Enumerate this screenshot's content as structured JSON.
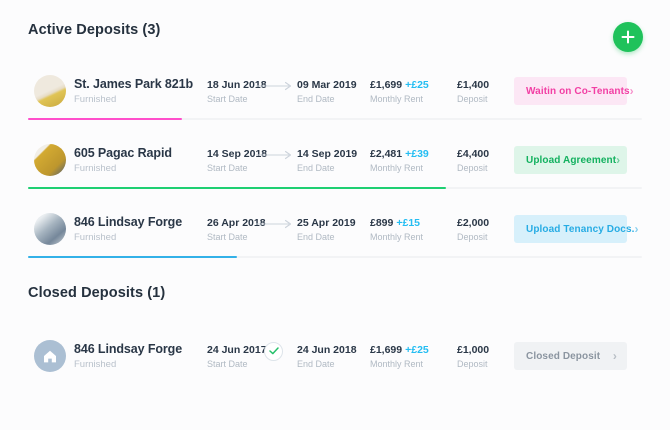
{
  "header": {
    "add_button_color": "#1fc25b",
    "add_button_icon": "plus-icon"
  },
  "columns": {
    "start": "Start Date",
    "end": "End Date",
    "rent": "Monthly Rent",
    "deposit": "Deposit"
  },
  "sections": [
    {
      "id": "active",
      "title": "Active Deposits (3)",
      "rows": [
        {
          "name": "St. James Park 821b",
          "subtitle": "Furnished",
          "avatar": {
            "kind": "photo",
            "gradient": "linear-gradient(155deg,#efe9de 48%,#e7dcc4 56%,#e0c455 62%,#c9a93f 100%)"
          },
          "start": "18 Jun 2018",
          "end": "09 Mar 2019",
          "connector": "arrow",
          "rent": "£1,699",
          "rent_delta": "+£25",
          "deposit": "£1,400",
          "status": {
            "label": "Waitin on Co-Tenants",
            "bg": "#fce7f5",
            "color": "#f23fa4"
          },
          "progress": {
            "percent": 25,
            "color": "#ff4ecb"
          }
        },
        {
          "name": "605 Pagac Rapid",
          "subtitle": "Furnished",
          "avatar": {
            "kind": "photo",
            "gradient": "linear-gradient(135deg,#f2efe8 24%,#d3aa32 27%,#bd962d 70%,#5a656f 96%)"
          },
          "start": "14 Sep 2018",
          "end": "14 Sep 2019",
          "connector": "arrow",
          "rent": "£2,481",
          "rent_delta": "+£39",
          "deposit": "£4,400",
          "status": {
            "label": "Upload Agreement",
            "bg": "#def5e9",
            "color": "#13b15f"
          },
          "progress": {
            "percent": 68,
            "color": "#1ecf72"
          }
        },
        {
          "name": "846 Lindsay Forge",
          "subtitle": "Furnished",
          "avatar": {
            "kind": "photo",
            "gradient": "linear-gradient(140deg,#e9edf0 18%,#a6b4c0 45%,#75879a 72%,#ccd3d8 100%)"
          },
          "start": "26 Apr 2018",
          "end": "25 Apr 2019",
          "connector": "arrow",
          "rent": "£899",
          "rent_delta": "+£15",
          "deposit": "£2,000",
          "status": {
            "label": "Upload Tenancy Docs.",
            "bg": "#d7f0fb",
            "color": "#27ace4"
          },
          "progress": {
            "percent": 34,
            "color": "#33b1e8"
          }
        }
      ]
    },
    {
      "id": "closed",
      "title": "Closed Deposits (1)",
      "rows": [
        {
          "name": "846 Lindsay Forge",
          "subtitle": "Furnished",
          "avatar": {
            "kind": "icon",
            "bg": "#abbfd3",
            "icon": "home-icon"
          },
          "start": "24 Jun 2017",
          "end": "24 Jun 2018",
          "connector": "check",
          "check_color": "#25c06a",
          "rent": "£1,699",
          "rent_delta": "+£25",
          "deposit": "£1,000",
          "status": {
            "label": "Closed Deposit",
            "bg": "#f0f2f4",
            "color": "#8b95a0"
          },
          "progress": null
        }
      ]
    }
  ]
}
